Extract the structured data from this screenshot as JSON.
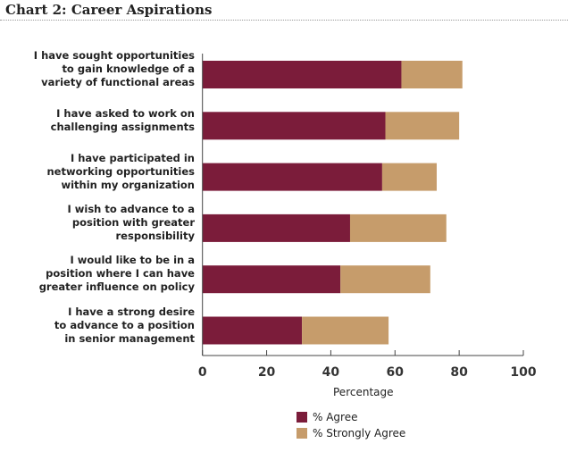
{
  "chart_data": {
    "type": "bar",
    "orientation": "horizontal",
    "stacked": true,
    "title": "Chart 2: Career Aspirations",
    "categories": [
      "I have sought opportunities to gain knowledge of a variety of functional areas",
      "I have asked to work on challenging assignments",
      "I have participated in networking opportunities within my organization",
      "I wish to advance to a position with greater responsibility",
      "I would like to be in a position where I can have greater influence on policy",
      "I have a strong desire to advance to a position in senior management"
    ],
    "category_lines": [
      [
        "I have sought opportunities",
        "to gain knowledge of a",
        "variety of functional areas"
      ],
      [
        "I have asked to work on",
        "challenging assignments"
      ],
      [
        "I have participated in",
        "networking opportunities",
        "within my organization"
      ],
      [
        "I wish to advance to a",
        "position with greater",
        "responsibility"
      ],
      [
        "I would like to be in a",
        "position where I can have",
        "greater influence on policy"
      ],
      [
        "I have a strong desire",
        "to advance to a position",
        "in senior management"
      ]
    ],
    "series": [
      {
        "name": "% Agree",
        "values": [
          62,
          57,
          56,
          46,
          43,
          31
        ],
        "color": "#7b1c3a"
      },
      {
        "name": "% Strongly Agree",
        "values": [
          19,
          23,
          17,
          30,
          28,
          27
        ],
        "color": "#c69c6b"
      }
    ],
    "xlabel": "Percentage",
    "xlim": [
      0,
      100
    ],
    "xticks": [
      "0",
      "20",
      "40",
      "60",
      "80",
      "100"
    ],
    "grid": false,
    "legend": "bottom"
  }
}
